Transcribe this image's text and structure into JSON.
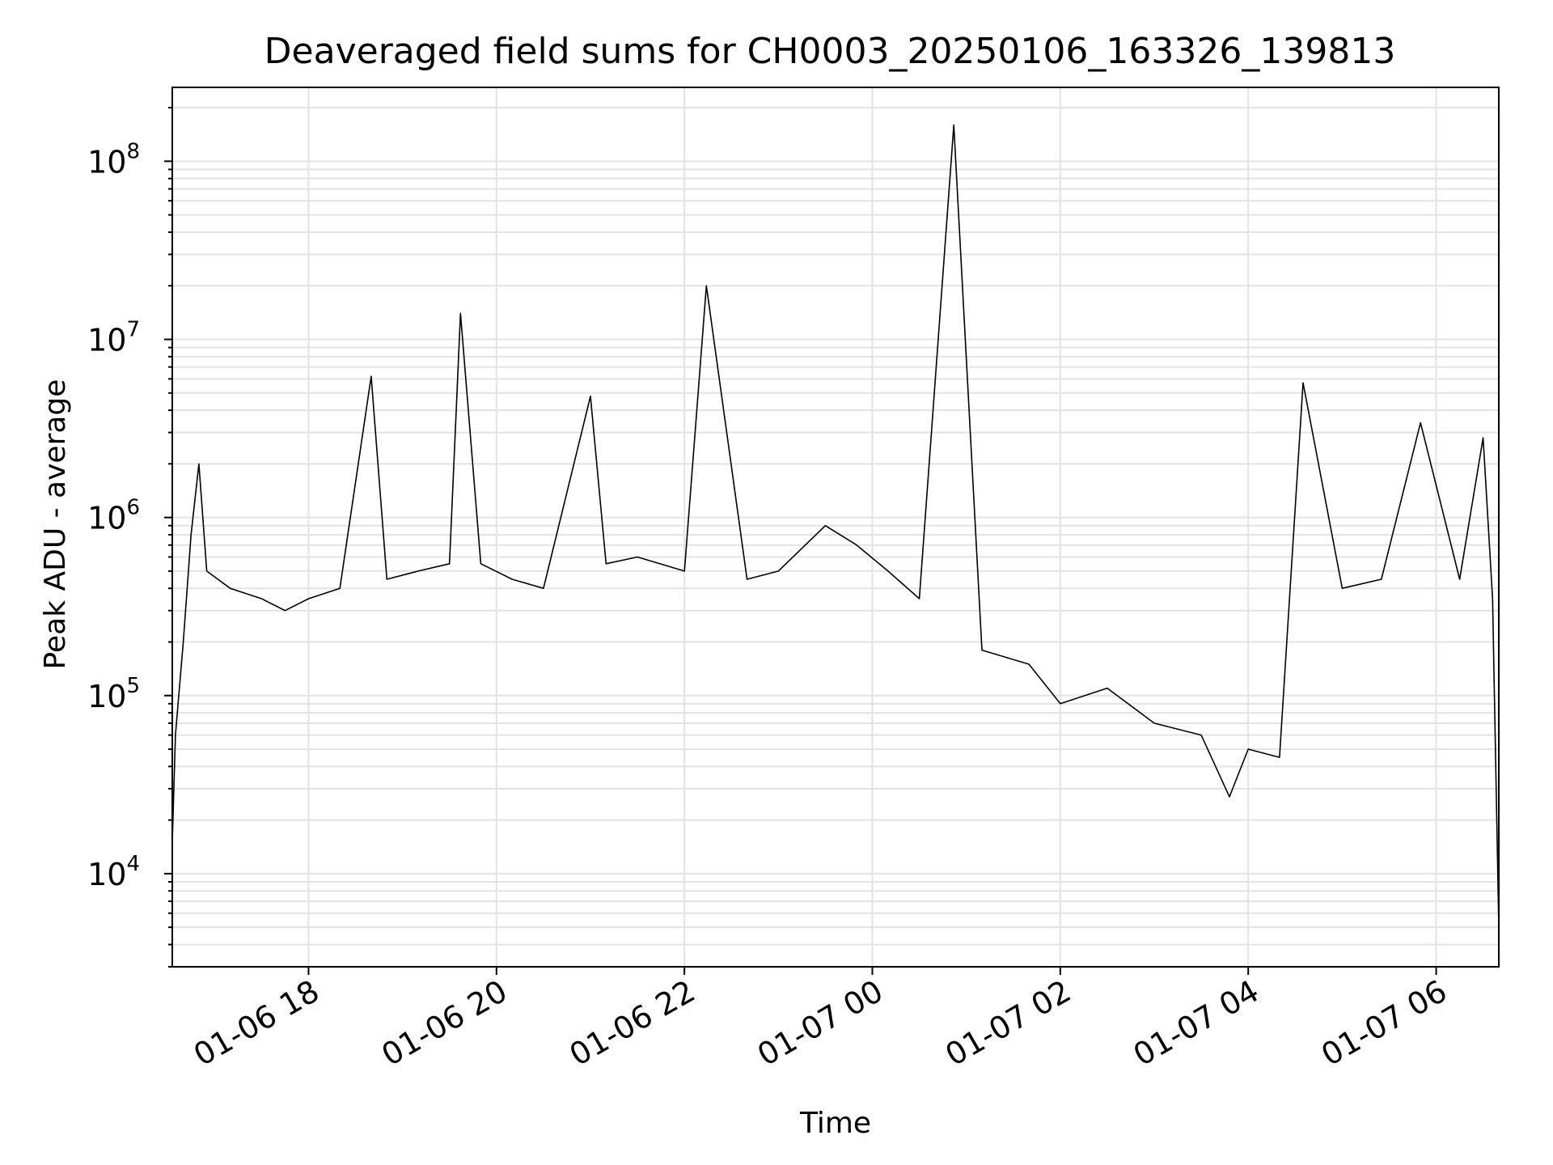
{
  "chart_data": {
    "type": "line",
    "title": "Deaveraged field sums for CH0003_20250106_163326_139813",
    "xlabel": "Time",
    "ylabel": "Peak ADU - average",
    "x_ticks": [
      "01-06 18",
      "01-06 20",
      "01-06 22",
      "01-07 00",
      "01-07 02",
      "01-07 04",
      "01-07 06"
    ],
    "y_ticks": [
      {
        "base": "10",
        "exp": "4"
      },
      {
        "base": "10",
        "exp": "5"
      },
      {
        "base": "10",
        "exp": "6"
      },
      {
        "base": "10",
        "exp": "7"
      },
      {
        "base": "10",
        "exp": "8"
      }
    ],
    "x_range": [
      "2025-01-06 16:33",
      "2025-01-07 06:40"
    ],
    "ylim": [
      3000,
      260000000
    ],
    "y_scale": "log",
    "grid": true,
    "line_color": "#000000",
    "series": [
      {
        "x": [
          "2025-01-06 16:33",
          "2025-01-06 16:35",
          "2025-01-06 16:40",
          "2025-01-06 16:45",
          "2025-01-06 16:50",
          "2025-01-06 16:55",
          "2025-01-06 17:10",
          "2025-01-06 17:30",
          "2025-01-06 17:45",
          "2025-01-06 18:00",
          "2025-01-06 18:20",
          "2025-01-06 18:40",
          "2025-01-06 18:50",
          "2025-01-06 19:10",
          "2025-01-06 19:30",
          "2025-01-06 19:37",
          "2025-01-06 19:50",
          "2025-01-06 20:10",
          "2025-01-06 20:30",
          "2025-01-06 21:00",
          "2025-01-06 21:10",
          "2025-01-06 21:30",
          "2025-01-06 22:00",
          "2025-01-06 22:14",
          "2025-01-06 22:40",
          "2025-01-06 23:00",
          "2025-01-06 23:30",
          "2025-01-06 23:50",
          "2025-01-07 00:10",
          "2025-01-07 00:30",
          "2025-01-07 00:52",
          "2025-01-07 01:10",
          "2025-01-07 01:40",
          "2025-01-07 02:00",
          "2025-01-07 02:30",
          "2025-01-07 03:00",
          "2025-01-07 03:30",
          "2025-01-07 03:48",
          "2025-01-07 04:00",
          "2025-01-07 04:20",
          "2025-01-07 04:35",
          "2025-01-07 05:00",
          "2025-01-07 05:25",
          "2025-01-07 05:50",
          "2025-01-07 06:15",
          "2025-01-07 06:30",
          "2025-01-07 06:36",
          "2025-01-07 06:40"
        ],
        "y": [
          15000,
          60000,
          200000,
          800000,
          2000000,
          500000,
          400000,
          350000,
          300000,
          350000,
          400000,
          6200000,
          450000,
          500000,
          550000,
          14000000,
          550000,
          450000,
          400000,
          4800000,
          550000,
          600000,
          500000,
          20000000,
          450000,
          500000,
          900000,
          700000,
          500000,
          350000,
          160000000,
          180000,
          150000,
          90000,
          110000,
          70000,
          60000,
          27000,
          50000,
          45000,
          5700000,
          400000,
          450000,
          3400000,
          450000,
          2800000,
          350000,
          5000
        ]
      }
    ]
  }
}
